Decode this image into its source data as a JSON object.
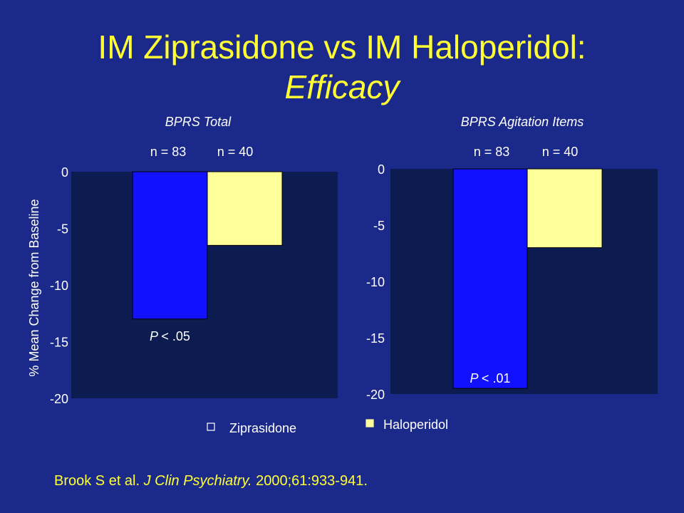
{
  "title_line1": "IM Ziprasidone vs IM Haloperidol:",
  "title_line2": "Efficacy",
  "ylabel": "% Mean Change from Baseline",
  "legend": [
    {
      "name": "Ziprasidone",
      "color": "#1111ff"
    },
    {
      "name": "Haloperidol",
      "color": "#ffff99"
    }
  ],
  "citation": {
    "authors": "Brook S et al.",
    "journal": "J Clin Psychiatry.",
    "details": "2000;61:933-941."
  },
  "colors": {
    "background": "#1b2a8a",
    "plot_bg": "#0c1c50",
    "text": "#ffffff",
    "title": "#ffff33"
  },
  "chart_data": [
    {
      "type": "bar",
      "title": "BPRS Total",
      "categories": [
        "n = 83",
        "n = 40"
      ],
      "series": [
        {
          "name": "Ziprasidone",
          "values": [
            -13,
            null
          ]
        },
        {
          "name": "Haloperidol",
          "values": [
            null,
            -6.5
          ]
        }
      ],
      "values": [
        -13,
        -6.5
      ],
      "ylim": [
        -20,
        0
      ],
      "yticks": [
        "0",
        "-5",
        "-10",
        "-15",
        "-20"
      ],
      "annotation": {
        "p_label": "P",
        "p_value": "< .05"
      }
    },
    {
      "type": "bar",
      "title": "BPRS Agitation Items",
      "categories": [
        "n = 83",
        "n = 40"
      ],
      "series": [
        {
          "name": "Ziprasidone",
          "values": [
            -19.5,
            null
          ]
        },
        {
          "name": "Haloperidol",
          "values": [
            null,
            -7
          ]
        }
      ],
      "values": [
        -19.5,
        -7
      ],
      "ylim": [
        -20,
        0
      ],
      "yticks": [
        "0",
        "-5",
        "-10",
        "-15",
        "-20"
      ],
      "annotation": {
        "p_label": "P",
        "p_value": "< .01"
      }
    }
  ]
}
